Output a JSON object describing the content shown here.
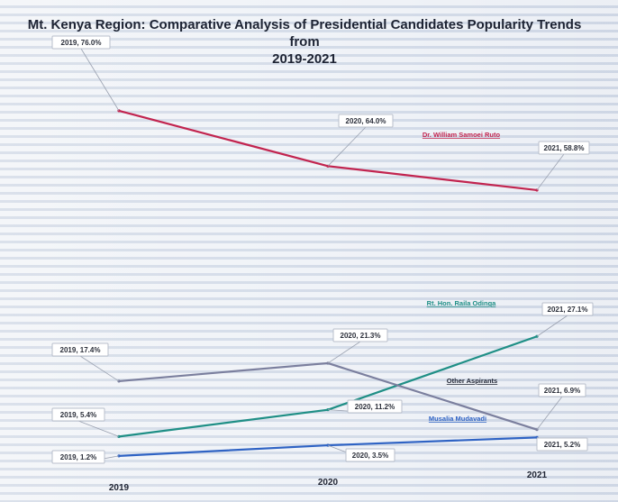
{
  "chart_data": {
    "type": "line",
    "title_line1": "Mt. Kenya Region: Comparative Analysis of Presidential Candidates Popularity Trends from",
    "title_line2": "2019-2021",
    "categories": [
      "2019",
      "2020",
      "2021"
    ],
    "series": [
      {
        "name": "Dr. William Samoei Ruto",
        "color": "#c2244f",
        "values": [
          76.0,
          64.0,
          58.8
        ],
        "point_labels": [
          "2019, 76.0%",
          "2020, 64.0%",
          "2021, 58.8%"
        ]
      },
      {
        "name": "Rt. Hon. Raila Odinga",
        "color": "#1f8f86",
        "values": [
          5.4,
          11.2,
          27.1
        ],
        "point_labels": [
          "2019, 5.4%",
          "2020, 11.2%",
          "2021, 27.1%"
        ]
      },
      {
        "name": "Other Aspirants",
        "color": "#7b7f9e",
        "values": [
          17.4,
          21.3,
          6.9
        ],
        "point_labels": [
          "2019, 17.4%",
          "2020, 21.3%",
          "2021, 6.9%"
        ]
      },
      {
        "name": "Musalia Mudavadi",
        "color": "#2f63c4",
        "values": [
          1.2,
          3.5,
          5.2
        ],
        "point_labels": [
          "2019, 1.2%",
          "2020, 3.5%",
          "2021, 5.2%"
        ]
      }
    ],
    "grid": false,
    "legend": "inline labels near lines"
  }
}
